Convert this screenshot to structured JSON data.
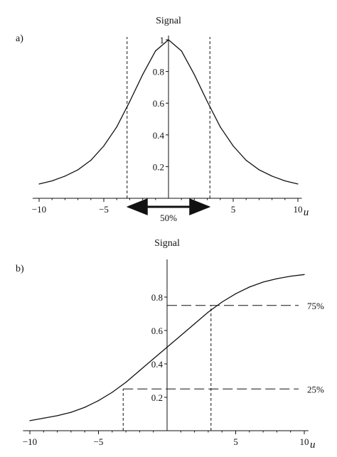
{
  "chart_data": [
    {
      "panel_label": "a)",
      "type": "line",
      "title": "Signal",
      "xlabel": "u",
      "ylabel": "",
      "xlim": [
        -10.5,
        10.3
      ],
      "ylim": [
        0,
        1
      ],
      "x_ticks": [
        "-10",
        "-5",
        "5",
        "10"
      ],
      "y_ticks": [
        "0.2",
        "0.4",
        "0.6",
        "0.8",
        "1"
      ],
      "series": [
        {
          "x": [
            -10,
            -9,
            -8,
            -7,
            -6,
            -5,
            -4,
            -3,
            -2,
            -1,
            0,
            1,
            2,
            3,
            4,
            5,
            6,
            7,
            8,
            9,
            10
          ],
          "values": [
            0.09,
            0.11,
            0.14,
            0.18,
            0.24,
            0.33,
            0.45,
            0.61,
            0.78,
            0.93,
            1.0,
            0.93,
            0.78,
            0.61,
            0.45,
            0.33,
            0.24,
            0.18,
            0.14,
            0.11,
            0.09
          ]
        }
      ],
      "reference_lines": {
        "vertical_x": [
          -3.2,
          3.2
        ]
      },
      "annotation": {
        "text": "50%",
        "from_x": -3.2,
        "to_x": 3.2,
        "arrow": "double"
      }
    },
    {
      "panel_label": "b)",
      "type": "line",
      "title": "Signal",
      "xlabel": "u",
      "ylabel": "",
      "xlim": [
        -10.5,
        10.3
      ],
      "ylim": [
        0,
        1
      ],
      "x_ticks": [
        "-10",
        "-5",
        "5",
        "10"
      ],
      "y_ticks": [
        "0.2",
        "0.4",
        "0.6",
        "0.8"
      ],
      "series": [
        {
          "x": [
            -10,
            -9,
            -8,
            -7,
            -6,
            -5,
            -4,
            -3,
            -2,
            -1,
            0,
            1,
            2,
            3,
            4,
            5,
            6,
            7,
            8,
            9,
            10
          ],
          "values": [
            0.06,
            0.075,
            0.09,
            0.11,
            0.14,
            0.18,
            0.23,
            0.29,
            0.36,
            0.43,
            0.5,
            0.57,
            0.64,
            0.71,
            0.77,
            0.82,
            0.86,
            0.89,
            0.91,
            0.925,
            0.935
          ]
        }
      ],
      "reference_lines": {
        "horizontal": [
          {
            "y": 0.75,
            "label": "75%"
          },
          {
            "y": 0.25,
            "label": "25%"
          }
        ],
        "vertical_x": [
          -3.2,
          3.2
        ]
      }
    }
  ]
}
